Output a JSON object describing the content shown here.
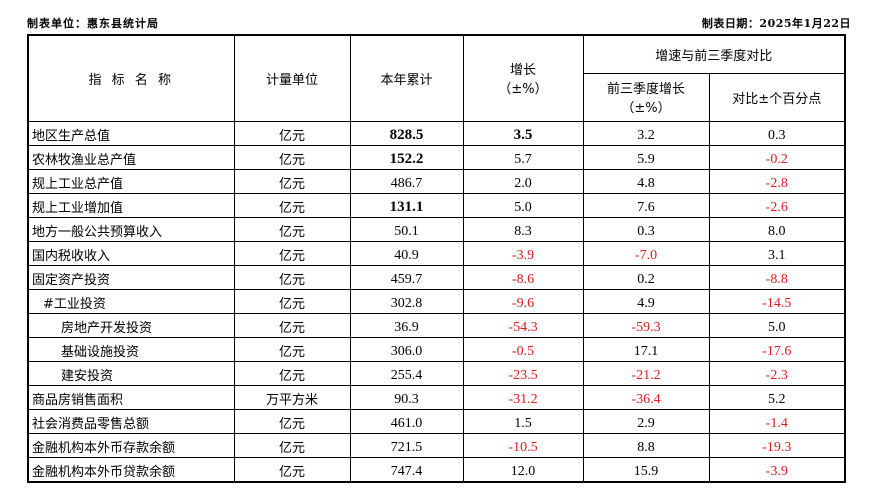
{
  "meta": {
    "unit_org": "制表单位：惠东县统计局",
    "date": "制表日期：2025年1月22日"
  },
  "header": {
    "indicator": "指 标 名 称",
    "unit": "计量单位",
    "ytd": "本年累计",
    "growth_l1": "增长",
    "growth_l2": "（±%）",
    "compare": "增速与前三季度对比",
    "prev_l1": "前三季度增长",
    "prev_l2": "（±%）",
    "diff": "对比±个百分点"
  },
  "rows": [
    {
      "name": "地区生产总值",
      "indent": 0,
      "unit": "亿元",
      "ytd": "828.5",
      "ytd_big": true,
      "growth": "3.5",
      "growth_big": true,
      "prev": "3.2",
      "diff": "0.3"
    },
    {
      "name": "农林牧渔业总产值",
      "indent": 0,
      "unit": "亿元",
      "ytd": "152.2",
      "ytd_big": true,
      "growth": "5.7",
      "prev": "5.9",
      "diff": "-0.2"
    },
    {
      "name": "规上工业总产值",
      "indent": 0,
      "unit": "亿元",
      "ytd": "486.7",
      "growth": "2.0",
      "prev": "4.8",
      "diff": "-2.8"
    },
    {
      "name": "规上工业增加值",
      "indent": 0,
      "unit": "亿元",
      "ytd": "131.1",
      "ytd_big": true,
      "growth": "5.0",
      "prev": "7.6",
      "diff": "-2.6"
    },
    {
      "name": "地方一般公共预算收入",
      "indent": 0,
      "unit": "亿元",
      "ytd": "50.1",
      "growth": "8.3",
      "prev": "0.3",
      "diff": "8.0"
    },
    {
      "name": "国内税收收入",
      "indent": 0,
      "unit": "亿元",
      "ytd": "40.9",
      "growth": "-3.9",
      "prev": "-7.0",
      "diff": "3.1"
    },
    {
      "name": "固定资产投资",
      "indent": 0,
      "unit": "亿元",
      "ytd": "459.7",
      "growth": "-8.6",
      "prev": "0.2",
      "diff": "-8.8"
    },
    {
      "name": "#工业投资",
      "indent": 1,
      "unit": "亿元",
      "ytd": "302.8",
      "growth": "-9.6",
      "prev": "4.9",
      "diff": "-14.5"
    },
    {
      "name": "房地产开发投资",
      "indent": 2,
      "unit": "亿元",
      "ytd": "36.9",
      "growth": "-54.3",
      "prev": "-59.3",
      "diff": "5.0"
    },
    {
      "name": "基础设施投资",
      "indent": 2,
      "unit": "亿元",
      "ytd": "306.0",
      "growth": "-0.5",
      "prev": "17.1",
      "diff": "-17.6"
    },
    {
      "name": "建安投资",
      "indent": 2,
      "unit": "亿元",
      "ytd": "255.4",
      "growth": "-23.5",
      "prev": "-21.2",
      "diff": "-2.3"
    },
    {
      "name": "商品房销售面积",
      "indent": 0,
      "unit": "万平方米",
      "ytd": "90.3",
      "growth": "-31.2",
      "prev": "-36.4",
      "diff": "5.2"
    },
    {
      "name": "社会消费品零售总额",
      "indent": 0,
      "unit": "亿元",
      "ytd": "461.0",
      "growth": "1.5",
      "prev": "2.9",
      "diff": "-1.4"
    },
    {
      "name": "金融机构本外币存款余额",
      "indent": 0,
      "unit": "亿元",
      "ytd": "721.5",
      "growth": "-10.5",
      "prev": "8.8",
      "diff": "-19.3"
    },
    {
      "name": "金融机构本外币贷款余额",
      "indent": 0,
      "unit": "亿元",
      "ytd": "747.4",
      "growth": "12.0",
      "prev": "15.9",
      "diff": "-3.9"
    }
  ],
  "colors": {
    "negative": "#e01b1b",
    "text": "#000000"
  }
}
